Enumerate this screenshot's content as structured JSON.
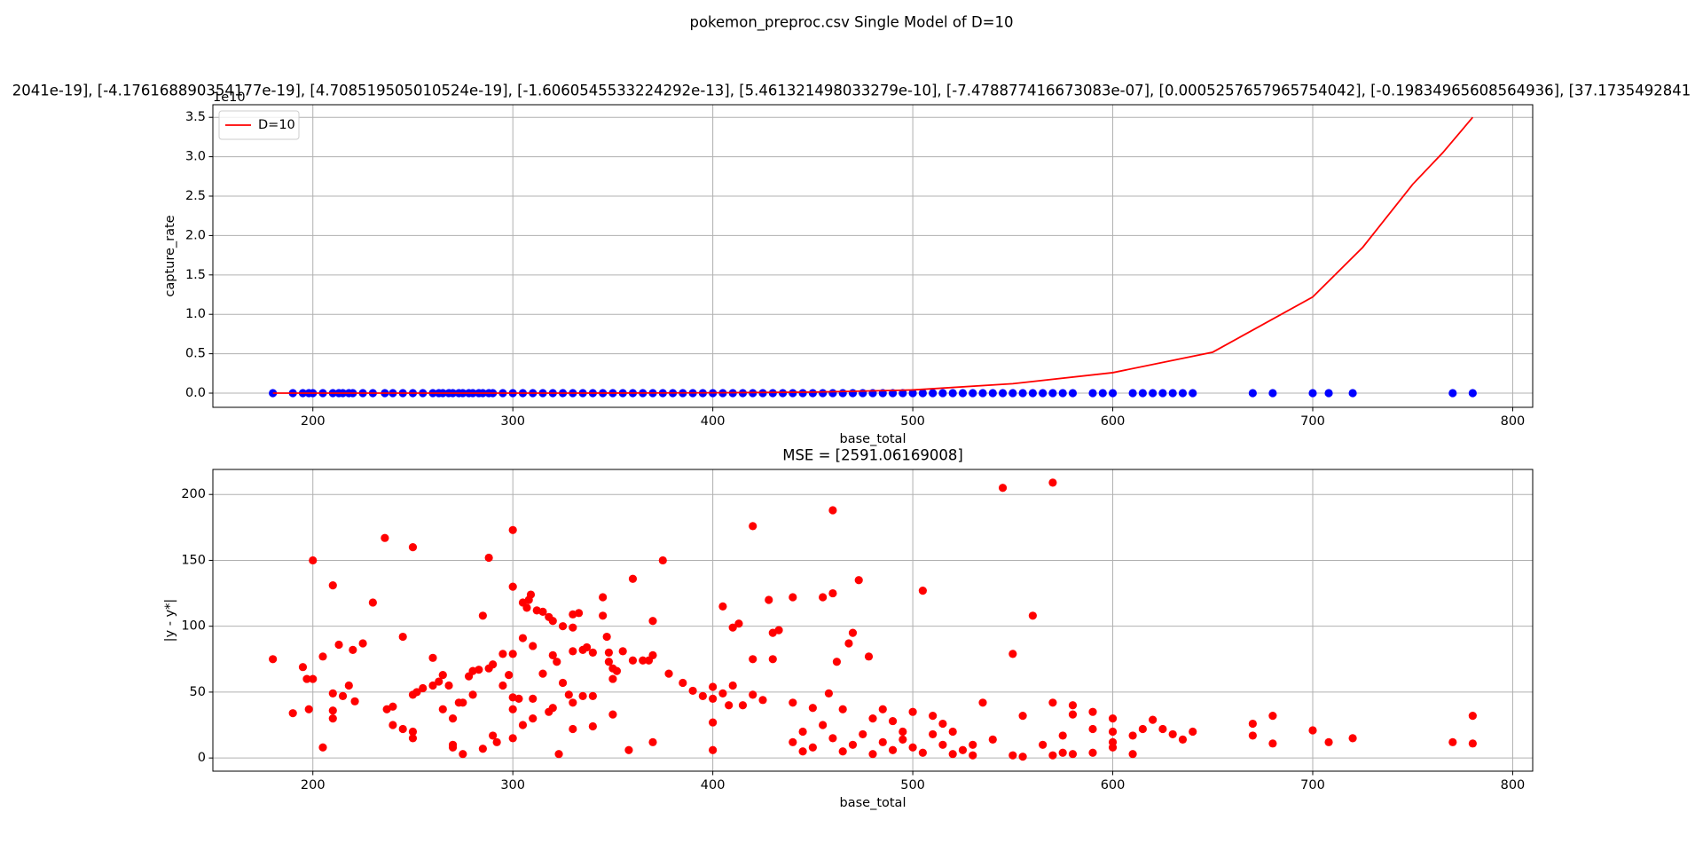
{
  "suptitle": "pokemon_preproc.csv Single Model of D=10",
  "chart_data": [
    {
      "type": "scatter",
      "title": "2041e-19], [-4.176168890354177e-19], [4.708519505010524e-19], [-1.6060545533224292e-13], [5.461321498033279e-10], [-7.478877416673083e-07], [0.0005257657965754042], [-0.19834965608564936], [37.1735492841",
      "x_label": "base_total",
      "y_label": "capture_rate",
      "y_offset": "1e10",
      "xlim": [
        150,
        810
      ],
      "ylim": [
        -0.18,
        3.66
      ],
      "xticks": [
        200,
        300,
        400,
        500,
        600,
        700,
        800
      ],
      "yticks": [
        {
          "value": 0,
          "label": "0.0"
        },
        0.5,
        {
          "value": 1,
          "label": "1.0"
        },
        1.5,
        {
          "value": 2,
          "label": "2.0"
        },
        2.5,
        {
          "value": 3,
          "label": "3.0"
        },
        3.5
      ],
      "grid": true,
      "legend": "upper left",
      "series": [
        {
          "color": "#0000ff",
          "style": "marker",
          "x": [
            180,
            190,
            195,
            198,
            200,
            205,
            210,
            213,
            215,
            218,
            220,
            225,
            230,
            236,
            240,
            245,
            250,
            255,
            260,
            263,
            265,
            268,
            270,
            273,
            275,
            278,
            280,
            283,
            285,
            288,
            290,
            295,
            300,
            305,
            310,
            315,
            320,
            325,
            330,
            335,
            340,
            345,
            350,
            355,
            360,
            365,
            370,
            375,
            380,
            385,
            390,
            395,
            400,
            405,
            410,
            415,
            420,
            425,
            430,
            435,
            440,
            445,
            450,
            455,
            460,
            465,
            470,
            475,
            480,
            485,
            490,
            495,
            500,
            505,
            510,
            515,
            520,
            525,
            530,
            535,
            540,
            545,
            550,
            555,
            560,
            565,
            570,
            575,
            580,
            590,
            595,
            600,
            610,
            615,
            620,
            625,
            630,
            635,
            640,
            670,
            680,
            700,
            708,
            720,
            770,
            780
          ],
          "values": [
            0,
            0,
            0,
            0,
            0,
            0,
            0,
            0,
            0,
            0,
            0,
            0,
            0,
            0,
            0,
            0,
            0,
            0,
            0,
            0,
            0,
            0,
            0,
            0,
            0,
            0,
            0,
            0,
            0,
            0,
            0,
            0,
            0,
            0,
            0,
            0,
            0,
            0,
            0,
            0,
            0,
            0,
            0,
            0,
            0,
            0,
            0,
            0,
            0,
            0,
            0,
            0,
            0,
            0,
            0,
            0,
            0,
            0,
            0,
            0,
            0,
            0,
            0,
            0,
            0,
            0,
            0,
            0,
            0,
            0,
            0,
            0,
            0,
            0,
            0,
            0,
            0,
            0,
            0,
            0,
            0,
            0,
            0,
            0,
            0,
            0,
            0,
            0,
            0,
            0,
            0,
            0,
            0,
            0,
            0,
            0,
            0,
            0,
            0,
            0,
            0,
            0,
            0,
            0,
            0,
            0
          ]
        },
        {
          "name": "D=10",
          "color": "#ff0000",
          "style": "line",
          "x": [
            180,
            250,
            300,
            350,
            400,
            450,
            500,
            550,
            600,
            650,
            700,
            725,
            750,
            765,
            780
          ],
          "values": [
            0,
            0,
            0,
            0.001,
            0.004,
            0.013,
            0.04,
            0.12,
            0.26,
            0.52,
            1.22,
            1.85,
            2.65,
            3.05,
            3.5
          ]
        }
      ]
    },
    {
      "type": "scatter",
      "title": "MSE = [2591.06169008]",
      "x_label": "base_total",
      "y_label": "|y - y*|",
      "xlim": [
        150,
        810
      ],
      "ylim": [
        -10,
        219
      ],
      "xticks": [
        200,
        300,
        400,
        500,
        600,
        700,
        800
      ],
      "yticks": [
        0,
        50,
        100,
        150,
        200
      ],
      "grid": true,
      "series": [
        {
          "color": "#ff0000",
          "style": "marker",
          "x": [
            180,
            190,
            195,
            197,
            198,
            200,
            200,
            205,
            205,
            210,
            210,
            210,
            210,
            213,
            215,
            218,
            220,
            221,
            225,
            230,
            236,
            237,
            240,
            240,
            245,
            245,
            250,
            250,
            250,
            250,
            252,
            255,
            260,
            260,
            263,
            265,
            265,
            268,
            270,
            270,
            270,
            273,
            275,
            275,
            278,
            280,
            280,
            283,
            285,
            285,
            288,
            288,
            290,
            290,
            292,
            295,
            295,
            298,
            300,
            300,
            300,
            300,
            300,
            300,
            303,
            305,
            305,
            305,
            307,
            308,
            309,
            310,
            310,
            310,
            312,
            315,
            315,
            318,
            318,
            320,
            320,
            320,
            322,
            323,
            325,
            325,
            328,
            330,
            330,
            330,
            330,
            330,
            333,
            335,
            335,
            337,
            340,
            340,
            340,
            345,
            345,
            347,
            348,
            348,
            350,
            350,
            350,
            352,
            355,
            358,
            360,
            360,
            365,
            368,
            370,
            370,
            370,
            375,
            378,
            385,
            390,
            395,
            400,
            400,
            400,
            400,
            405,
            405,
            408,
            410,
            410,
            413,
            415,
            420,
            420,
            420,
            425,
            428,
            430,
            430,
            433,
            440,
            440,
            445,
            450,
            455,
            458,
            460,
            460,
            462,
            465,
            468,
            470,
            473,
            478,
            480,
            485,
            490,
            495,
            500,
            505,
            510,
            515,
            520,
            530,
            535,
            545,
            550,
            555,
            560,
            570,
            570,
            575,
            580,
            580,
            590,
            600,
            600,
            610,
            615,
            620,
            625,
            630,
            640,
            670,
            670,
            680,
            680,
            700,
            708,
            720,
            770,
            780,
            780,
            440,
            445,
            450,
            455,
            460,
            465,
            470,
            475,
            480,
            485,
            490,
            495,
            500,
            505,
            510,
            515,
            520,
            525,
            530,
            540,
            550,
            555,
            565,
            570,
            575,
            580,
            590,
            600,
            610,
            635,
            590,
            600
          ],
          "values": [
            75,
            34,
            69,
            60,
            37,
            150,
            60,
            8,
            77,
            131,
            49,
            30,
            36,
            86,
            47,
            55,
            82,
            43,
            87,
            118,
            167,
            37,
            39,
            25,
            92,
            22,
            160,
            20,
            15,
            48,
            50,
            53,
            76,
            55,
            58,
            63,
            37,
            55,
            10,
            30,
            8,
            42,
            3,
            42,
            62,
            66,
            48,
            67,
            108,
            7,
            152,
            68,
            71,
            17,
            12,
            79,
            55,
            63,
            173,
            130,
            79,
            46,
            37,
            15,
            45,
            118,
            91,
            25,
            114,
            120,
            124,
            85,
            45,
            30,
            112,
            111,
            64,
            107,
            35,
            104,
            78,
            38,
            73,
            3,
            100,
            57,
            48,
            109,
            81,
            99,
            42,
            22,
            110,
            82,
            47,
            84,
            80,
            47,
            24,
            122,
            108,
            92,
            80,
            73,
            68,
            60,
            33,
            66,
            81,
            6,
            136,
            74,
            74,
            74,
            104,
            78,
            12,
            150,
            64,
            57,
            51,
            47,
            54,
            45,
            27,
            6,
            115,
            49,
            40,
            99,
            55,
            102,
            40,
            176,
            75,
            48,
            44,
            120,
            75,
            95,
            97,
            122,
            42,
            5,
            38,
            122,
            49,
            188,
            125,
            73,
            37,
            87,
            95,
            135,
            77,
            30,
            37,
            28,
            20,
            35,
            127,
            32,
            26,
            20,
            10,
            42,
            205,
            79,
            32,
            108,
            209,
            42,
            17,
            40,
            33,
            35,
            30,
            20,
            17,
            22,
            29,
            22,
            18,
            20,
            26,
            17,
            32,
            11,
            21,
            12,
            15,
            12,
            32,
            11,
            12,
            20,
            8,
            25,
            15,
            5,
            10,
            18,
            3,
            12,
            6,
            14,
            8,
            4,
            18,
            10,
            3,
            6,
            2,
            14,
            2,
            1,
            10,
            2,
            4,
            3,
            4,
            12,
            3,
            14,
            22,
            8
          ]
        }
      ]
    }
  ]
}
